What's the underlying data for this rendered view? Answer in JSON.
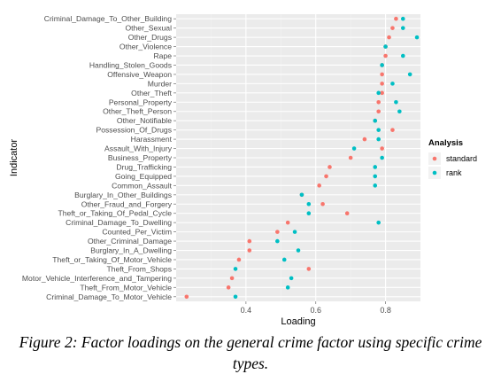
{
  "chart_data": {
    "type": "scatter",
    "title": "",
    "xlabel": "Loading",
    "ylabel": "Indicator",
    "xlim": [
      0.2,
      0.9
    ],
    "x_ticks": [
      "0.4",
      "0.6",
      "0.8"
    ],
    "x_tick_values": [
      0.4,
      0.6,
      0.8
    ],
    "grid": true,
    "legend_position": "right",
    "legend_title": "Analysis",
    "categories": [
      "Criminal_Damage_To_Other_Building",
      "Other_Sexual",
      "Other_Drugs",
      "Other_Violence",
      "Rape",
      "Handling_Stolen_Goods",
      "Offensive_Weapon",
      "Murder",
      "Other_Theft",
      "Personal_Property",
      "Other_Theft_Person",
      "Other_Notifiable",
      "Possession_Of_Drugs",
      "Harassment",
      "Assault_With_Injury",
      "Business_Property",
      "Drug_Trafficking",
      "Going_Equipped",
      "Common_Assault",
      "Burglary_In_Other_Buildings",
      "Other_Fraud_and_Forgery",
      "Theft_or_Taking_Of_Pedal_Cycle",
      "Criminal_Damage_To_Dwelling",
      "Counted_Per_Victim",
      "Other_Criminal_Damage",
      "Burglary_In_A_Dwelling",
      "Theft_or_Taking_Of_Motor_Vehicle",
      "Theft_From_Shops",
      "Motor_Vehicle_Interference_and_Tampering",
      "Theft_From_Motor_Vehicle",
      "Criminal_Damage_To_Motor_Vehicle"
    ],
    "series": [
      {
        "name": "standard",
        "color": "#F8766D",
        "values": [
          0.83,
          0.82,
          0.81,
          0.8,
          0.8,
          0.79,
          0.79,
          0.79,
          0.79,
          0.78,
          0.78,
          0.77,
          0.82,
          0.74,
          0.79,
          0.7,
          0.64,
          0.63,
          0.61,
          0.56,
          0.62,
          0.69,
          0.52,
          0.49,
          0.41,
          0.41,
          0.38,
          0.58,
          0.36,
          0.35,
          0.23
        ]
      },
      {
        "name": "rank",
        "color": "#00BFC4",
        "values": [
          0.85,
          0.85,
          0.89,
          0.8,
          0.85,
          0.79,
          0.87,
          0.82,
          0.78,
          0.83,
          0.84,
          0.77,
          0.78,
          0.78,
          0.71,
          0.79,
          0.77,
          0.77,
          0.77,
          0.56,
          0.58,
          0.58,
          0.78,
          0.54,
          0.49,
          0.55,
          0.51,
          0.37,
          0.53,
          0.52,
          0.37
        ]
      }
    ]
  },
  "caption": "Figure 2: Factor loadings on the general crime factor using specific crime types."
}
